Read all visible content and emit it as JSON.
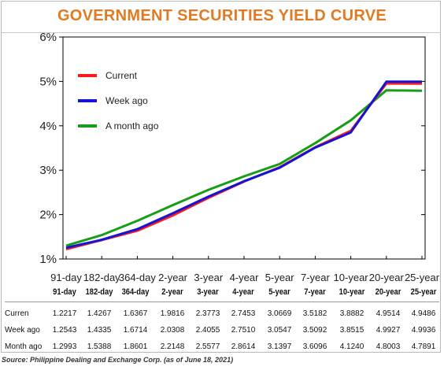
{
  "title": "GOVERNMENT SECURITIES YIELD CURVE",
  "source": "Source: Philippine Dealing and Exchange Corp. (as of June 18, 2021)",
  "colors": {
    "title": "#e07b24",
    "current": "#ff1a1a",
    "week_ago": "#1414d6",
    "month_ago": "#179e17"
  },
  "chart_data": {
    "type": "line",
    "title": "GOVERNMENT SECURITIES YIELD CURVE",
    "categories": [
      "91-day",
      "182-day",
      "364-day",
      "2-year",
      "3-year",
      "4-year",
      "5-year",
      "7-year",
      "10-year",
      "20-year",
      "25-year"
    ],
    "y_tick_labels": [
      "1%",
      "2%",
      "3%",
      "4%",
      "5%",
      "6%"
    ],
    "ylim": [
      1,
      6
    ],
    "grid": false,
    "legend_position": "top-left",
    "series": [
      {
        "name": "Current",
        "color": "#ff1a1a",
        "values": [
          1.2217,
          1.4267,
          1.6367,
          1.9816,
          2.3773,
          2.7453,
          3.0669,
          3.5182,
          3.8882,
          4.9514,
          4.9486
        ]
      },
      {
        "name": "Week ago",
        "color": "#1414d6",
        "values": [
          1.2543,
          1.4335,
          1.6714,
          2.0308,
          2.4055,
          2.751,
          3.0547,
          3.5092,
          3.8515,
          4.9927,
          4.9936
        ]
      },
      {
        "name": "A month ago",
        "color": "#179e17",
        "values": [
          1.2993,
          1.5388,
          1.8601,
          2.2148,
          2.5577,
          2.8614,
          3.1397,
          3.6096,
          4.124,
          4.8003,
          4.7891
        ]
      }
    ]
  },
  "table": {
    "headers": [
      "91-day",
      "182-day",
      "364-day",
      "2-year",
      "3-year",
      "4-year",
      "5-year",
      "7-year",
      "10-year",
      "20-year",
      "25-year"
    ],
    "rows": [
      {
        "label": "Curren",
        "values": [
          "1.2217",
          "1.4267",
          "1.6367",
          "1.9816",
          "2.3773",
          "2.7453",
          "3.0669",
          "3.5182",
          "3.8882",
          "4.9514",
          "4.9486"
        ]
      },
      {
        "label": "Week ago",
        "values": [
          "1.2543",
          "1.4335",
          "1.6714",
          "2.0308",
          "2.4055",
          "2.7510",
          "3.0547",
          "3.5092",
          "3.8515",
          "4.9927",
          "4.9936"
        ]
      },
      {
        "label": "Month ago",
        "values": [
          "1.2993",
          "1.5388",
          "1.8601",
          "2.2148",
          "2.5577",
          "2.8614",
          "3.1397",
          "3.6096",
          "4.1240",
          "4.8003",
          "4.7891"
        ]
      }
    ]
  }
}
